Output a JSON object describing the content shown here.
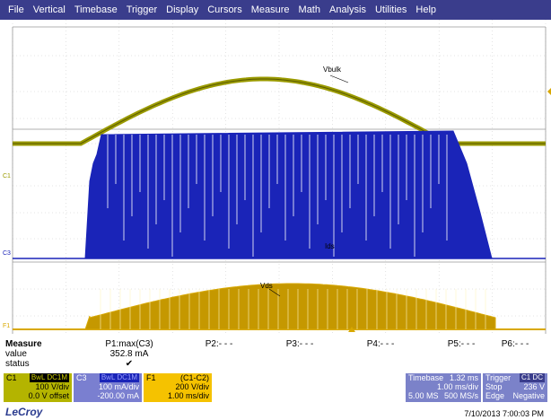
{
  "menu": [
    "File",
    "Vertical",
    "Timebase",
    "Trigger",
    "Display",
    "Cursors",
    "Measure",
    "Math",
    "Analysis",
    "Utilities",
    "Help"
  ],
  "colors": {
    "menubar": "#3a3d8c",
    "c1": "#9b9b00",
    "c3": "#1a24b8",
    "f1": "#d8a800",
    "grid": "#c8c8c8"
  },
  "traces": {
    "vbulk_label": "Vbulk",
    "ids_label": "Ids",
    "vds_label": "Vds"
  },
  "markers": {
    "c1": "C1",
    "c3": "C3",
    "f1": "F1"
  },
  "measure": {
    "title": "Measure",
    "value_label": "value",
    "status_label": "status",
    "params": [
      {
        "name": "P1:max(C3)",
        "value": "352.8 mA",
        "status": "✔"
      },
      {
        "name": "P2:- - -",
        "value": "",
        "status": ""
      },
      {
        "name": "P3:- - -",
        "value": "",
        "status": ""
      },
      {
        "name": "P4:- - -",
        "value": "",
        "status": ""
      },
      {
        "name": "P5:- - -",
        "value": "",
        "status": ""
      },
      {
        "name": "P6:- - -",
        "value": "",
        "status": ""
      }
    ]
  },
  "descriptors": {
    "c1": {
      "name": "C1",
      "chips": "BwL DC1M",
      "line1": "100 V/div",
      "line2": "0.0 V offset"
    },
    "c3": {
      "name": "C3",
      "chips": "BwL DC1M",
      "line1": "100 mA/div",
      "line2": "-200.00 mA"
    },
    "f1": {
      "name": "F1",
      "chips": "(C1-C2)",
      "line1": "200 V/div",
      "line2": "1.00 ms/div"
    },
    "timebase": {
      "label": "Timebase",
      "value": "1.32 ms",
      "line1": "1.00 ms/div",
      "line2a": "5.00 MS",
      "line2b": "500 MS/s"
    },
    "trigger": {
      "label": "Trigger",
      "chip": "C1 DC",
      "line1a": "Stop",
      "line1b": "236 V",
      "line2a": "Edge",
      "line2b": "Negative"
    }
  },
  "footer": {
    "logo": "LeCroy",
    "datetime": "7/10/2013 7:00:03 PM"
  }
}
